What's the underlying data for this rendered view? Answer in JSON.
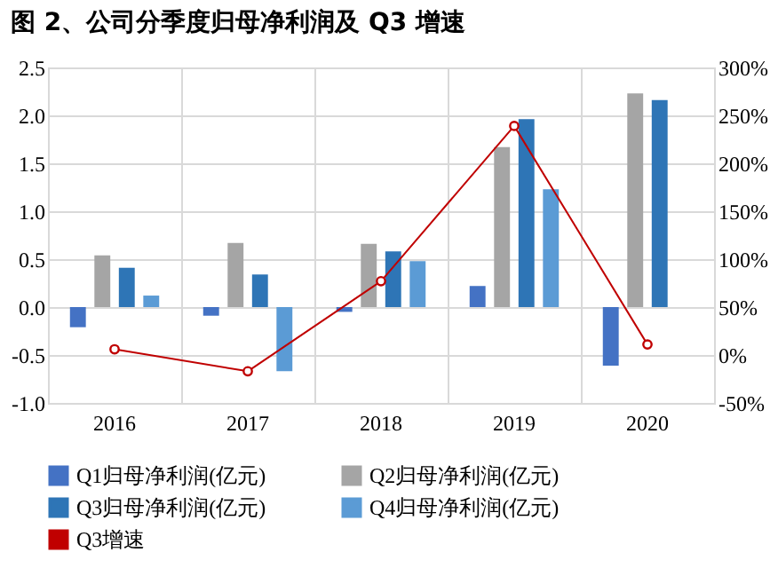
{
  "chart_data": {
    "type": "bar",
    "title": "图 2、公司分季度归母净利润及 Q3 增速",
    "categories": [
      "2016",
      "2017",
      "2018",
      "2019",
      "2020"
    ],
    "series": [
      {
        "name": "Q1归母净利润(亿元)",
        "color": "#4472c4",
        "values": [
          -0.21,
          -0.09,
          -0.05,
          0.22,
          -0.61
        ]
      },
      {
        "name": "Q2归母净利润(亿元)",
        "color": "#a5a5a5",
        "values": [
          0.54,
          0.67,
          0.66,
          1.67,
          2.23
        ]
      },
      {
        "name": "Q3归母净利润(亿元)",
        "color": "#2e75b6",
        "values": [
          0.41,
          0.34,
          0.58,
          1.96,
          2.16
        ]
      },
      {
        "name": "Q4归母净利润(亿元)",
        "color": "#5b9bd5",
        "values": [
          0.12,
          -0.67,
          0.48,
          1.23,
          null
        ]
      },
      {
        "name": "Q3增速",
        "color": "#c00000",
        "type": "line",
        "axis": "y2",
        "values": [
          6,
          -17,
          77,
          239,
          11
        ]
      }
    ],
    "ylim": [
      -1,
      2.5
    ],
    "yticks": [
      {
        "value": -1,
        "label": "-1.0"
      },
      {
        "value": -0.5,
        "label": "-0.5"
      },
      {
        "value": 0,
        "label": "0.0"
      },
      {
        "value": 0.5,
        "label": "0.5"
      },
      {
        "value": 1,
        "label": "1.0"
      },
      {
        "value": 1.5,
        "label": "1.5"
      },
      {
        "value": 2,
        "label": "2.0"
      },
      {
        "value": 2.5,
        "label": "2.5"
      }
    ],
    "y2lim": [
      -50,
      300
    ],
    "y2ticks": [
      {
        "value": -50,
        "label": "-50%"
      },
      {
        "value": 0,
        "label": "0%"
      },
      {
        "value": 50,
        "label": "50%"
      },
      {
        "value": 100,
        "label": "100%"
      },
      {
        "value": 150,
        "label": "150%"
      },
      {
        "value": 200,
        "label": "200%"
      },
      {
        "value": 250,
        "label": "250%"
      },
      {
        "value": 300,
        "label": "300%"
      }
    ],
    "grid": true,
    "legend": "bottom",
    "marker": "circle",
    "line_style": "solid"
  }
}
